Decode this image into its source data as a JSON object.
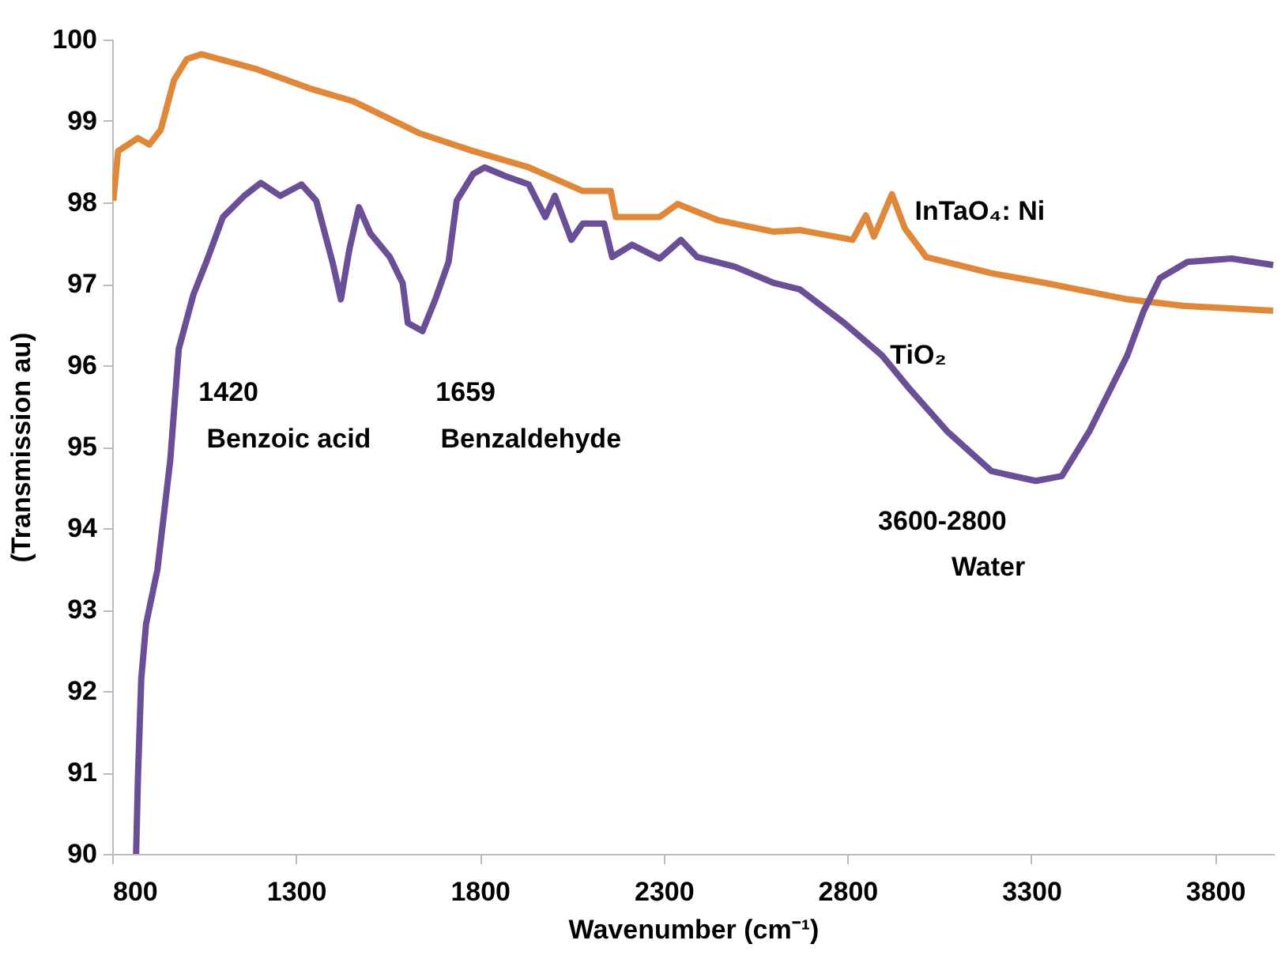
{
  "chart_data": {
    "type": "line",
    "xlabel": "Wavenumber (cm⁻¹)",
    "ylabel": "(Transmission au)",
    "xlim": [
      800,
      3960
    ],
    "xticks": [
      800,
      1300,
      1800,
      2300,
      2800,
      3300,
      3800
    ],
    "ylim": [
      90,
      100
    ],
    "yticks": [
      90,
      91,
      92,
      93,
      94,
      95,
      96,
      97,
      98,
      99,
      100
    ],
    "grid": false,
    "legend": false,
    "marker": "none",
    "line_style": "solid",
    "series": [
      {
        "name": "InTaO₄: Ni",
        "color": "#e0883a",
        "x": [
          803,
          816,
          870,
          901,
          932,
          968,
          1003,
          1043,
          1190,
          1337,
          1457,
          1635,
          1782,
          1933,
          2004,
          2080,
          2156,
          2170,
          2289,
          2338,
          2449,
          2600,
          2671,
          2814,
          2850,
          2872,
          2921,
          2956,
          3014,
          3192,
          3339,
          3561,
          3712,
          3958
        ],
        "values": [
          98.02,
          98.63,
          98.79,
          98.71,
          98.89,
          99.5,
          99.76,
          99.82,
          99.64,
          99.4,
          99.24,
          98.85,
          98.63,
          98.43,
          98.29,
          98.14,
          98.14,
          97.82,
          97.82,
          97.98,
          97.78,
          97.64,
          97.66,
          97.54,
          97.84,
          97.58,
          98.1,
          97.68,
          97.33,
          97.13,
          97.01,
          96.81,
          96.73,
          96.67
        ]
      },
      {
        "name": "TiO₂",
        "color": "#6a4f97",
        "x": [
          865,
          870,
          879,
          892,
          923,
          958,
          981,
          1021,
          1057,
          1101,
          1159,
          1204,
          1257,
          1315,
          1355,
          1399,
          1422,
          1445,
          1471,
          1502,
          1555,
          1590,
          1604,
          1644,
          1679,
          1715,
          1737,
          1782,
          1813,
          1871,
          1933,
          1978,
          2004,
          2049,
          2080,
          2138,
          2160,
          2214,
          2289,
          2347,
          2391,
          2494,
          2600,
          2671,
          2791,
          2894,
          2969,
          3071,
          3192,
          3312,
          3383,
          3458,
          3561,
          3605,
          3650,
          3725,
          3845,
          3958
        ],
        "values": [
          90.0,
          90.94,
          92.15,
          92.82,
          93.49,
          94.84,
          96.2,
          96.87,
          97.28,
          97.82,
          98.08,
          98.24,
          98.08,
          98.22,
          98.02,
          97.27,
          96.81,
          97.42,
          97.94,
          97.62,
          97.33,
          97.01,
          96.52,
          96.42,
          96.81,
          97.27,
          98.02,
          98.35,
          98.43,
          98.32,
          98.22,
          97.82,
          98.08,
          97.54,
          97.74,
          97.74,
          97.33,
          97.48,
          97.31,
          97.54,
          97.33,
          97.21,
          97.01,
          96.93,
          96.52,
          96.12,
          95.71,
          95.19,
          94.7,
          94.58,
          94.64,
          95.19,
          96.12,
          96.66,
          97.07,
          97.27,
          97.31,
          97.23
        ]
      }
    ],
    "annotations": [
      "1420",
      "Benzoic acid",
      "1659",
      "Benzaldehyde",
      "3600-2800",
      "Water"
    ]
  }
}
